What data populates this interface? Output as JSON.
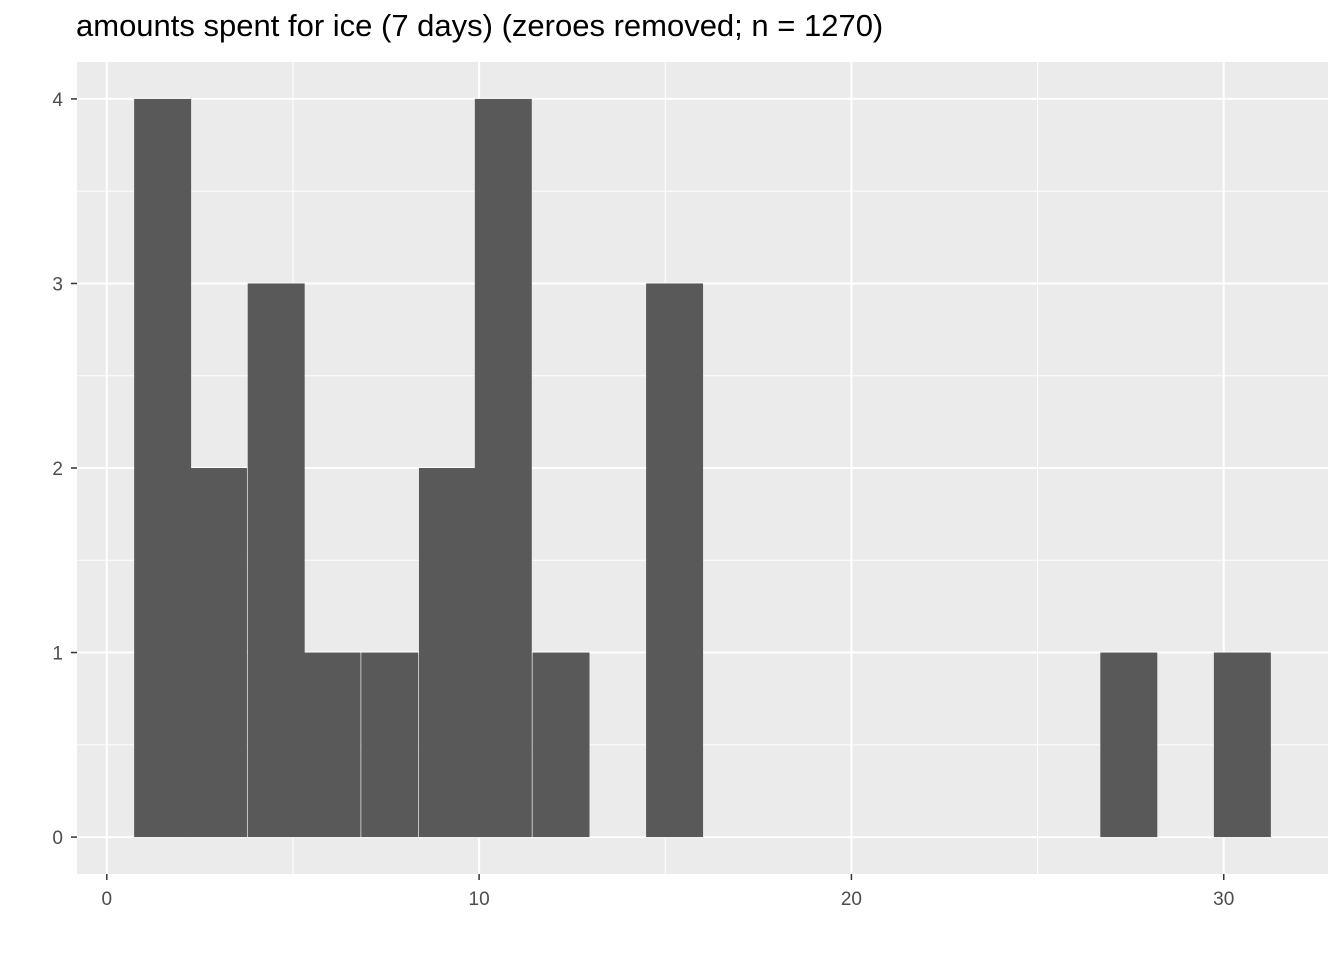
{
  "chart_data": {
    "type": "bar",
    "title": "amounts spent for ice (7 days) (zeroes removed; n = 1270)",
    "xlabel": "",
    "ylabel": "",
    "xlim": [
      -0.8,
      32.8
    ],
    "ylim": [
      -0.2,
      4.2
    ],
    "x_ticks": [
      0,
      10,
      20,
      30
    ],
    "y_ticks": [
      0,
      1,
      2,
      3,
      4
    ],
    "grid": true,
    "bin_width": 1.53,
    "bins": [
      {
        "center": 1.5,
        "count": 4
      },
      {
        "center": 3.0,
        "count": 2
      },
      {
        "center": 4.55,
        "count": 3
      },
      {
        "center": 6.05,
        "count": 1
      },
      {
        "center": 7.6,
        "count": 1
      },
      {
        "center": 9.15,
        "count": 2
      },
      {
        "center": 10.65,
        "count": 4
      },
      {
        "center": 12.2,
        "count": 1
      },
      {
        "center": 15.25,
        "count": 3
      },
      {
        "center": 27.45,
        "count": 1
      },
      {
        "center": 30.5,
        "count": 1
      }
    ],
    "colors": {
      "panel": "#ebebeb",
      "grid": "#ffffff",
      "bar": "#595959",
      "tick_text": "#4d4d4d",
      "tick_mark": "#333333"
    }
  }
}
